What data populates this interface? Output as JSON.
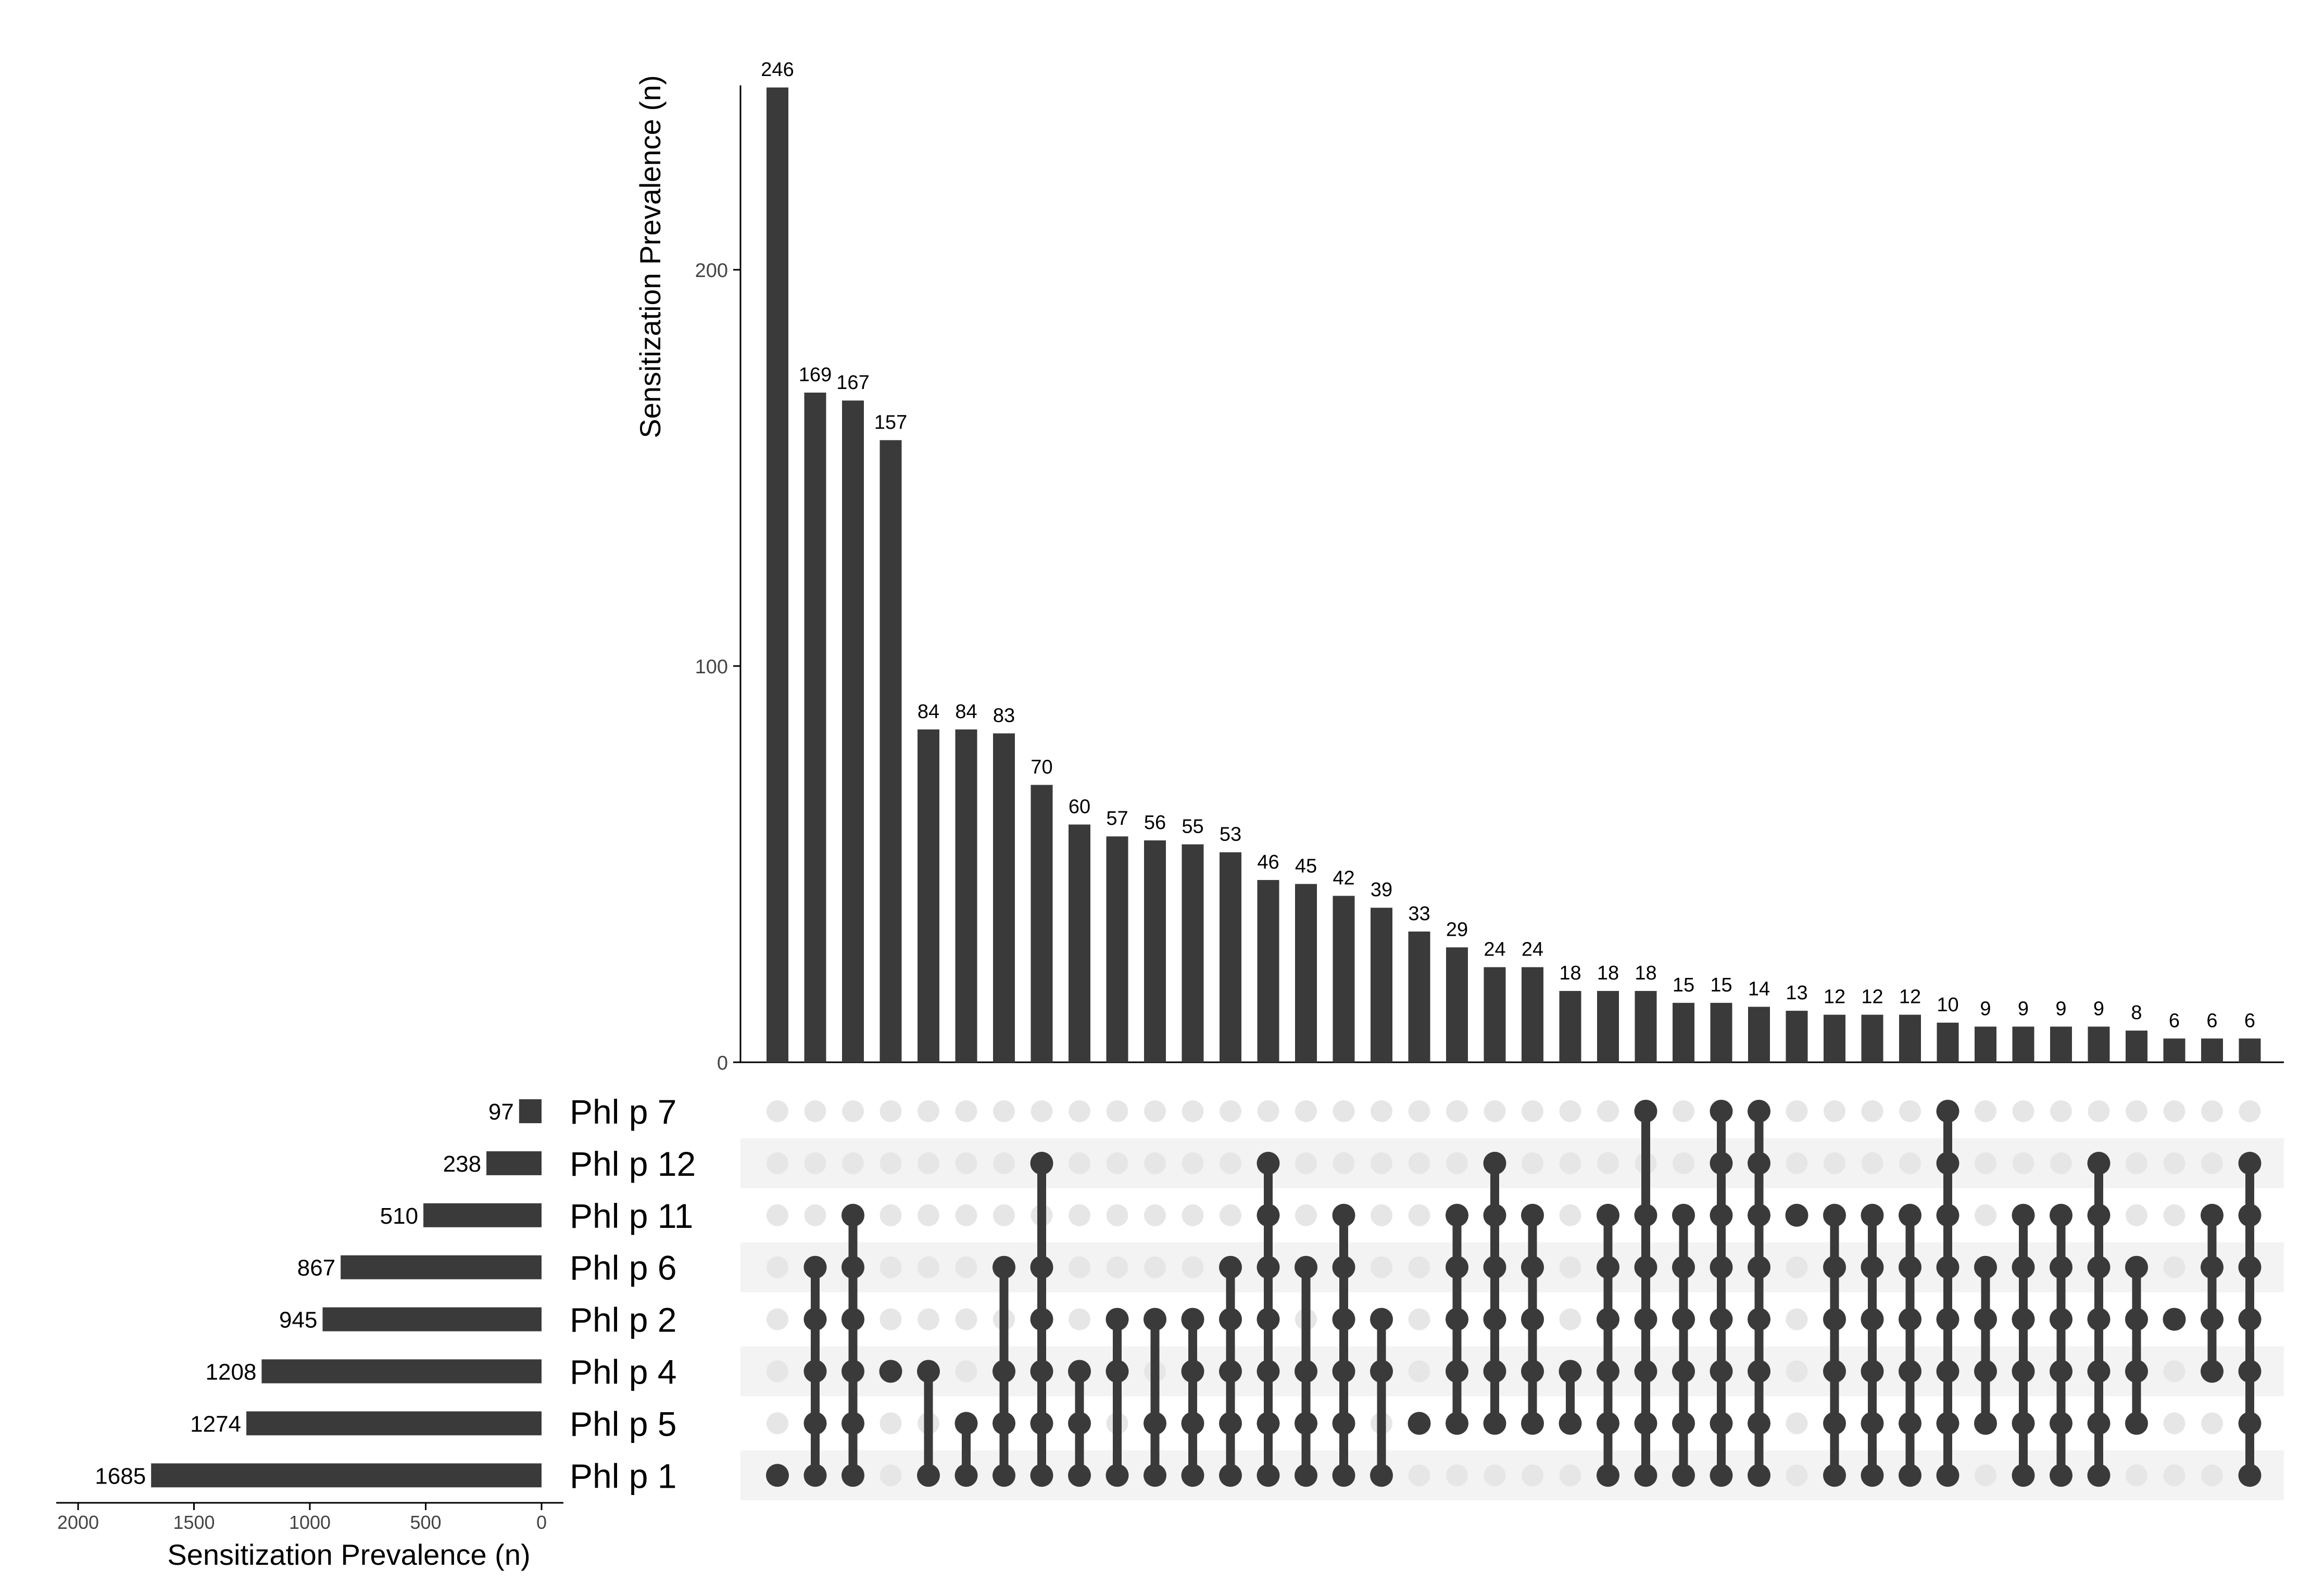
{
  "chart_data": {
    "type": "bar",
    "chart_kind": "upset",
    "colors": {
      "bar": "#3a3a3a",
      "dot_inactive": "#e6e6e6",
      "row_stripe": "#f3f3f3",
      "axis": "#000000",
      "text": "#000000",
      "tick_text": "#444444"
    },
    "intersections": {
      "ylabel": "Sensitization Prevalence (n)",
      "ylim": [
        0,
        246
      ],
      "yticks": [
        0,
        100,
        200
      ],
      "values": [
        246,
        169,
        167,
        157,
        84,
        84,
        83,
        70,
        60,
        57,
        56,
        55,
        53,
        46,
        45,
        42,
        39,
        33,
        29,
        24,
        24,
        18,
        18,
        18,
        15,
        15,
        14,
        13,
        12,
        12,
        12,
        10,
        9,
        9,
        9,
        9,
        8,
        6,
        6,
        6
      ],
      "value_labels": [
        "246",
        "169",
        "167",
        "157",
        "84",
        "84",
        "83",
        "70",
        "60",
        "57",
        "56",
        "55",
        "53",
        "46",
        "45",
        "42",
        "39",
        "33",
        "29",
        "24",
        "24",
        "18",
        "18",
        "18",
        "15",
        "15",
        "14",
        "13",
        "12",
        "12",
        "12",
        "10",
        "9",
        "9",
        "9",
        "9",
        "8",
        "6",
        "6",
        "6"
      ],
      "members": [
        [
          "Phl p 1"
        ],
        [
          "Phl p 1",
          "Phl p 5",
          "Phl p 4",
          "Phl p 2",
          "Phl p 6"
        ],
        [
          "Phl p 1",
          "Phl p 5",
          "Phl p 4",
          "Phl p 2",
          "Phl p 6",
          "Phl p 11"
        ],
        [
          "Phl p 4"
        ],
        [
          "Phl p 1",
          "Phl p 4"
        ],
        [
          "Phl p 1",
          "Phl p 5"
        ],
        [
          "Phl p 1",
          "Phl p 5",
          "Phl p 4",
          "Phl p 6"
        ],
        [
          "Phl p 1",
          "Phl p 5",
          "Phl p 4",
          "Phl p 2",
          "Phl p 6",
          "Phl p 12"
        ],
        [
          "Phl p 1",
          "Phl p 5",
          "Phl p 4"
        ],
        [
          "Phl p 1",
          "Phl p 4",
          "Phl p 2"
        ],
        [
          "Phl p 1",
          "Phl p 5",
          "Phl p 2"
        ],
        [
          "Phl p 1",
          "Phl p 5",
          "Phl p 4",
          "Phl p 2"
        ],
        [
          "Phl p 1",
          "Phl p 5",
          "Phl p 4",
          "Phl p 2",
          "Phl p 6"
        ],
        [
          "Phl p 1",
          "Phl p 5",
          "Phl p 4",
          "Phl p 2",
          "Phl p 6",
          "Phl p 11",
          "Phl p 12"
        ],
        [
          "Phl p 1",
          "Phl p 5",
          "Phl p 4",
          "Phl p 6"
        ],
        [
          "Phl p 1",
          "Phl p 5",
          "Phl p 4",
          "Phl p 2",
          "Phl p 6",
          "Phl p 11"
        ],
        [
          "Phl p 1",
          "Phl p 4",
          "Phl p 2"
        ],
        [
          "Phl p 5"
        ],
        [
          "Phl p 5",
          "Phl p 4",
          "Phl p 2",
          "Phl p 6",
          "Phl p 11"
        ],
        [
          "Phl p 5",
          "Phl p 4",
          "Phl p 2",
          "Phl p 6",
          "Phl p 11",
          "Phl p 12"
        ],
        [
          "Phl p 5",
          "Phl p 4",
          "Phl p 2",
          "Phl p 6",
          "Phl p 11"
        ],
        [
          "Phl p 5",
          "Phl p 4"
        ],
        [
          "Phl p 1",
          "Phl p 5",
          "Phl p 4",
          "Phl p 2",
          "Phl p 6",
          "Phl p 11"
        ],
        [
          "Phl p 1",
          "Phl p 5",
          "Phl p 4",
          "Phl p 2",
          "Phl p 6",
          "Phl p 11",
          "Phl p 7"
        ],
        [
          "Phl p 1",
          "Phl p 5",
          "Phl p 4",
          "Phl p 2",
          "Phl p 6",
          "Phl p 11"
        ],
        [
          "Phl p 1",
          "Phl p 5",
          "Phl p 4",
          "Phl p 2",
          "Phl p 6",
          "Phl p 11",
          "Phl p 12",
          "Phl p 7"
        ],
        [
          "Phl p 1",
          "Phl p 5",
          "Phl p 4",
          "Phl p 2",
          "Phl p 6",
          "Phl p 11",
          "Phl p 12",
          "Phl p 7"
        ],
        [
          "Phl p 11"
        ],
        [
          "Phl p 1",
          "Phl p 5",
          "Phl p 4",
          "Phl p 2",
          "Phl p 6",
          "Phl p 11"
        ],
        [
          "Phl p 1",
          "Phl p 5",
          "Phl p 4",
          "Phl p 2",
          "Phl p 6",
          "Phl p 11"
        ],
        [
          "Phl p 1",
          "Phl p 5",
          "Phl p 4",
          "Phl p 2",
          "Phl p 6",
          "Phl p 11"
        ],
        [
          "Phl p 1",
          "Phl p 5",
          "Phl p 4",
          "Phl p 2",
          "Phl p 6",
          "Phl p 11",
          "Phl p 12",
          "Phl p 7"
        ],
        [
          "Phl p 5",
          "Phl p 4",
          "Phl p 2",
          "Phl p 6"
        ],
        [
          "Phl p 1",
          "Phl p 5",
          "Phl p 4",
          "Phl p 2",
          "Phl p 6",
          "Phl p 11"
        ],
        [
          "Phl p 1",
          "Phl p 5",
          "Phl p 4",
          "Phl p 2",
          "Phl p 6",
          "Phl p 11"
        ],
        [
          "Phl p 1",
          "Phl p 5",
          "Phl p 4",
          "Phl p 2",
          "Phl p 6",
          "Phl p 11",
          "Phl p 12"
        ],
        [
          "Phl p 5",
          "Phl p 4",
          "Phl p 2",
          "Phl p 6"
        ],
        [
          "Phl p 2"
        ],
        [
          "Phl p 4",
          "Phl p 2",
          "Phl p 6",
          "Phl p 11"
        ],
        [
          "Phl p 1",
          "Phl p 5",
          "Phl p 4",
          "Phl p 2",
          "Phl p 6",
          "Phl p 11",
          "Phl p 12"
        ]
      ]
    },
    "sets": {
      "xlabel": "Sensitization Prevalence (n)",
      "xlim": [
        0,
        2000
      ],
      "xticks": [
        2000,
        1500,
        1000,
        500,
        0
      ],
      "names": [
        "Phl p 7",
        "Phl p 12",
        "Phl p 11",
        "Phl p 6",
        "Phl p 2",
        "Phl p 4",
        "Phl p 5",
        "Phl p 1"
      ],
      "values": [
        97,
        238,
        510,
        867,
        945,
        1208,
        1274,
        1685
      ],
      "value_labels": [
        "97",
        "238",
        "510",
        "867",
        "945",
        "1208",
        "1274",
        "1685"
      ]
    }
  }
}
